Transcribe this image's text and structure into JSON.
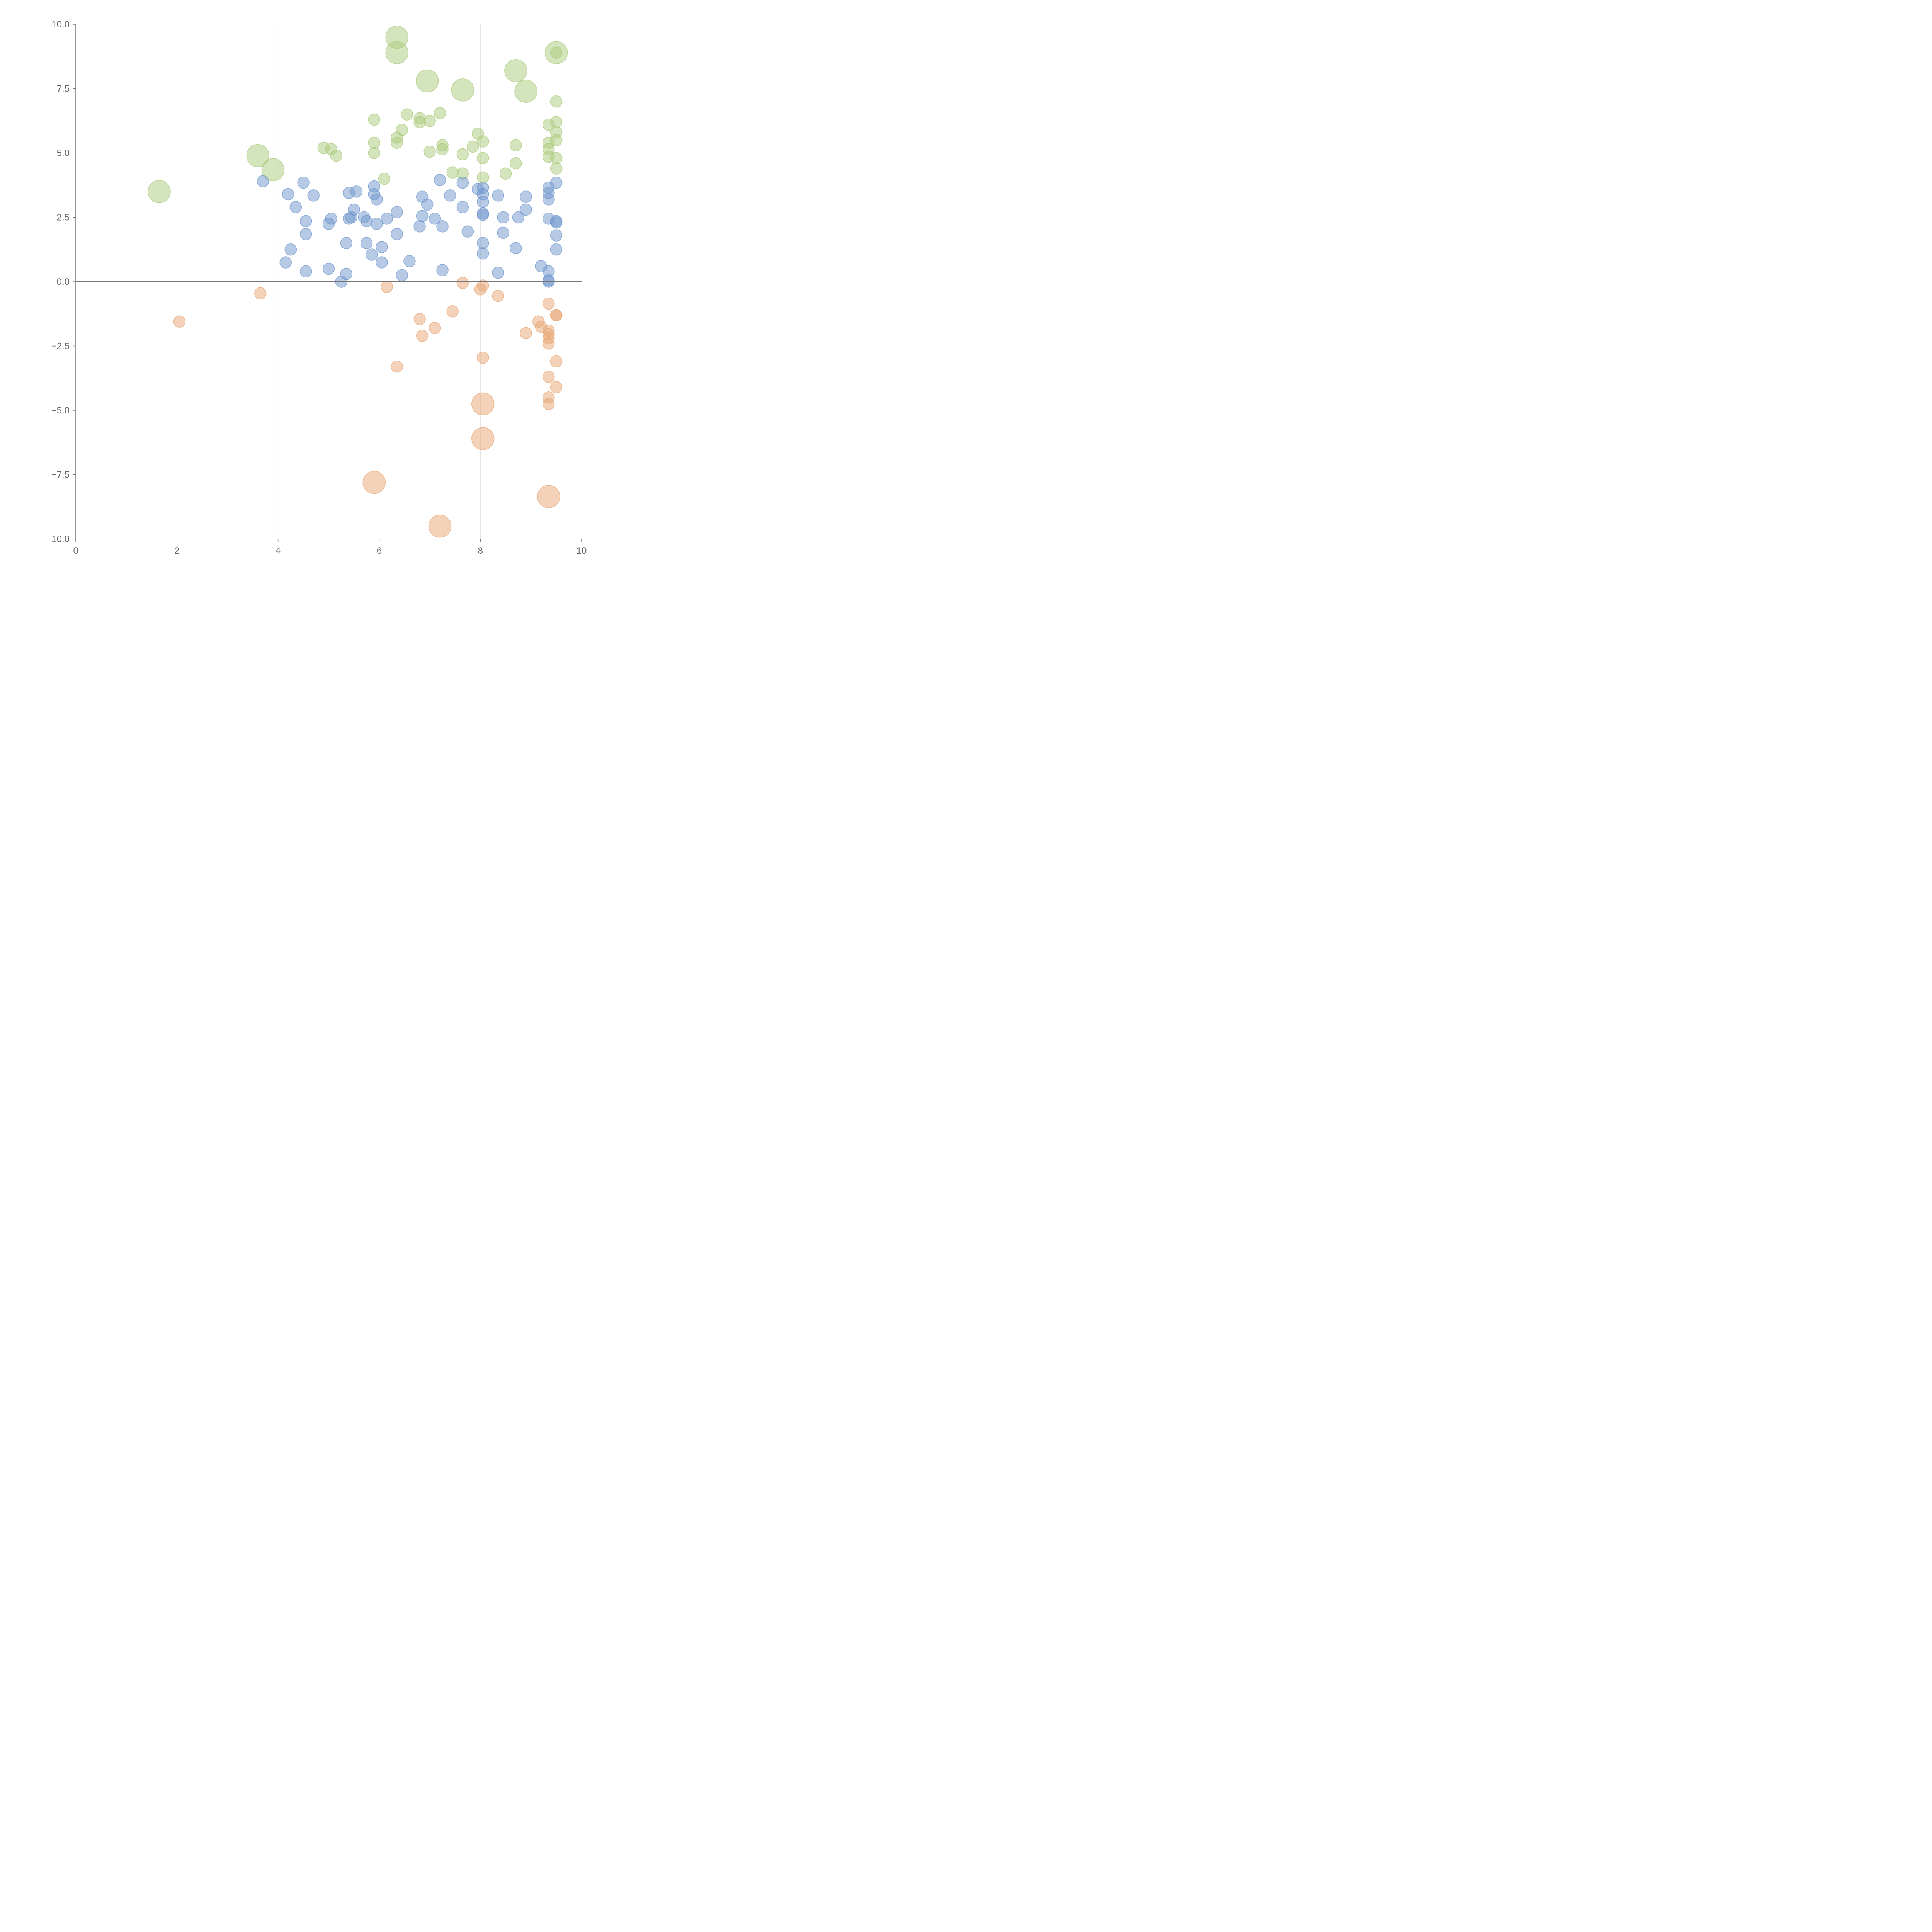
{
  "chart_data": {
    "type": "scatter",
    "title": "",
    "xlabel": "",
    "ylabel": "",
    "xlim": [
      0,
      10
    ],
    "ylim": [
      -10,
      10
    ],
    "grid": "vertical",
    "zero_line": true,
    "legend": "none",
    "x_ticks": [
      "0",
      "2",
      "4",
      "6",
      "8",
      "10"
    ],
    "y_ticks": [
      "10.0",
      "7.5",
      "5.0",
      "2.5",
      "0.0",
      "−2.5",
      "−5.0",
      "−7.5",
      "−10.0"
    ],
    "series": [
      {
        "color": "#a9c97a",
        "points": [
          [
            1.65,
            3.5,
            2
          ],
          [
            3.6,
            4.9,
            2
          ],
          [
            3.9,
            4.35,
            2
          ],
          [
            6.35,
            9.5,
            2
          ],
          [
            6.35,
            8.9,
            2
          ],
          [
            6.95,
            7.8,
            2
          ],
          [
            7.65,
            7.45,
            2
          ],
          [
            8.7,
            8.2,
            2
          ],
          [
            8.9,
            7.4,
            2
          ],
          [
            9.5,
            8.9,
            2
          ],
          [
            4.9,
            5.2,
            1
          ],
          [
            5.05,
            5.15,
            1
          ],
          [
            5.15,
            4.9,
            1
          ],
          [
            5.9,
            6.3,
            1
          ],
          [
            5.9,
            5.4,
            1
          ],
          [
            5.9,
            5.0,
            1
          ],
          [
            6.1,
            4.0,
            1
          ],
          [
            6.35,
            5.6,
            1
          ],
          [
            6.35,
            5.4,
            1
          ],
          [
            6.45,
            5.9,
            1
          ],
          [
            6.55,
            6.5,
            1
          ],
          [
            6.8,
            6.35,
            1
          ],
          [
            6.8,
            6.2,
            1
          ],
          [
            7.0,
            6.25,
            1
          ],
          [
            7.0,
            5.05,
            1
          ],
          [
            7.2,
            6.55,
            1
          ],
          [
            7.25,
            5.3,
            1
          ],
          [
            7.25,
            5.15,
            1
          ],
          [
            7.45,
            4.25,
            1
          ],
          [
            7.65,
            4.95,
            1
          ],
          [
            7.65,
            4.2,
            1
          ],
          [
            7.85,
            5.25,
            1
          ],
          [
            7.95,
            5.75,
            1
          ],
          [
            8.05,
            5.45,
            1
          ],
          [
            8.05,
            4.8,
            1
          ],
          [
            8.05,
            4.05,
            1
          ],
          [
            8.5,
            4.2,
            1
          ],
          [
            8.7,
            5.3,
            1
          ],
          [
            8.7,
            4.6,
            1
          ],
          [
            9.35,
            6.1,
            1
          ],
          [
            9.35,
            5.4,
            1
          ],
          [
            9.35,
            5.15,
            1
          ],
          [
            9.35,
            4.85,
            1
          ],
          [
            9.5,
            7.0,
            1
          ],
          [
            9.5,
            6.2,
            1
          ],
          [
            9.5,
            5.8,
            1
          ],
          [
            9.5,
            5.5,
            1
          ],
          [
            9.5,
            4.8,
            1
          ],
          [
            9.5,
            4.4,
            1
          ],
          [
            9.5,
            8.9,
            1
          ]
        ]
      },
      {
        "color": "#6f95cc",
        "points": [
          [
            3.7,
            3.9,
            1
          ],
          [
            4.2,
            3.4,
            1
          ],
          [
            4.25,
            1.25,
            1
          ],
          [
            4.15,
            0.75,
            1
          ],
          [
            4.35,
            2.9,
            1
          ],
          [
            4.5,
            3.85,
            1
          ],
          [
            4.55,
            2.35,
            1
          ],
          [
            4.55,
            1.85,
            1
          ],
          [
            4.55,
            0.4,
            1
          ],
          [
            4.7,
            3.35,
            1
          ],
          [
            5.0,
            2.25,
            1
          ],
          [
            5.05,
            2.45,
            1
          ],
          [
            5.0,
            0.5,
            1
          ],
          [
            5.25,
            0.0,
            1
          ],
          [
            5.35,
            1.5,
            1
          ],
          [
            5.35,
            0.3,
            1
          ],
          [
            5.4,
            3.45,
            1
          ],
          [
            5.4,
            2.45,
            1
          ],
          [
            5.45,
            2.5,
            1
          ],
          [
            5.5,
            2.8,
            1
          ],
          [
            5.55,
            3.5,
            1
          ],
          [
            5.7,
            2.5,
            1
          ],
          [
            5.75,
            2.35,
            1
          ],
          [
            5.75,
            1.5,
            1
          ],
          [
            5.85,
            1.05,
            1
          ],
          [
            5.9,
            3.7,
            1
          ],
          [
            5.9,
            3.4,
            1
          ],
          [
            5.95,
            3.2,
            1
          ],
          [
            5.95,
            2.25,
            1
          ],
          [
            6.05,
            1.35,
            1
          ],
          [
            6.05,
            0.75,
            1
          ],
          [
            6.15,
            2.45,
            1
          ],
          [
            6.35,
            2.7,
            1
          ],
          [
            6.35,
            1.85,
            1
          ],
          [
            6.45,
            0.25,
            1
          ],
          [
            6.6,
            0.8,
            1
          ],
          [
            6.8,
            2.15,
            1
          ],
          [
            6.85,
            3.3,
            1
          ],
          [
            6.85,
            2.55,
            1
          ],
          [
            6.95,
            3.0,
            1
          ],
          [
            7.1,
            2.45,
            1
          ],
          [
            7.2,
            3.95,
            1
          ],
          [
            7.25,
            2.15,
            1
          ],
          [
            7.25,
            0.45,
            1
          ],
          [
            7.4,
            3.35,
            1
          ],
          [
            7.65,
            3.85,
            1
          ],
          [
            7.65,
            2.9,
            1
          ],
          [
            7.75,
            1.95,
            1
          ],
          [
            7.95,
            3.6,
            1
          ],
          [
            8.05,
            3.65,
            1
          ],
          [
            8.05,
            3.4,
            1
          ],
          [
            8.05,
            3.1,
            1
          ],
          [
            8.05,
            2.65,
            1
          ],
          [
            8.05,
            2.6,
            1
          ],
          [
            8.05,
            1.5,
            1
          ],
          [
            8.05,
            1.1,
            1
          ],
          [
            8.35,
            3.35,
            1
          ],
          [
            8.35,
            0.35,
            1
          ],
          [
            8.45,
            2.5,
            1
          ],
          [
            8.45,
            1.9,
            1
          ],
          [
            8.7,
            1.3,
            1
          ],
          [
            8.75,
            2.5,
            1
          ],
          [
            8.9,
            3.3,
            1
          ],
          [
            8.9,
            2.8,
            1
          ],
          [
            9.2,
            0.6,
            1
          ],
          [
            9.35,
            3.65,
            1
          ],
          [
            9.35,
            3.45,
            1
          ],
          [
            9.35,
            3.2,
            1
          ],
          [
            9.35,
            2.45,
            1
          ],
          [
            9.35,
            0.4,
            1
          ],
          [
            9.35,
            0.05,
            1
          ],
          [
            9.35,
            0.0,
            1
          ],
          [
            9.5,
            3.85,
            1
          ],
          [
            9.5,
            2.35,
            1
          ],
          [
            9.5,
            2.3,
            1
          ],
          [
            9.5,
            1.8,
            1
          ],
          [
            9.5,
            1.25,
            1
          ]
        ]
      },
      {
        "color": "#e8a673",
        "points": [
          [
            2.05,
            -1.55,
            1
          ],
          [
            3.65,
            -0.45,
            1
          ],
          [
            6.15,
            -0.2,
            1
          ],
          [
            6.35,
            -3.3,
            1
          ],
          [
            6.8,
            -1.45,
            1
          ],
          [
            6.85,
            -2.1,
            1
          ],
          [
            7.1,
            -1.8,
            1
          ],
          [
            7.45,
            -1.15,
            1
          ],
          [
            7.65,
            -0.05,
            1
          ],
          [
            8.0,
            -0.3,
            1
          ],
          [
            8.05,
            -0.15,
            1
          ],
          [
            8.05,
            -2.95,
            1
          ],
          [
            8.35,
            -0.55,
            1
          ],
          [
            8.9,
            -2.0,
            1
          ],
          [
            9.15,
            -1.55,
            1
          ],
          [
            9.2,
            -1.75,
            1
          ],
          [
            9.35,
            -0.85,
            1
          ],
          [
            9.35,
            -1.9,
            1
          ],
          [
            9.35,
            -2.05,
            1
          ],
          [
            9.35,
            -2.2,
            1
          ],
          [
            9.35,
            -2.4,
            1
          ],
          [
            9.35,
            -3.7,
            1
          ],
          [
            9.35,
            -4.5,
            1
          ],
          [
            9.35,
            -4.75,
            1
          ],
          [
            9.5,
            -1.3,
            1
          ],
          [
            9.5,
            -1.3,
            1
          ],
          [
            9.5,
            -3.1,
            1
          ],
          [
            9.5,
            -4.1,
            1
          ],
          [
            5.9,
            -7.8,
            2
          ],
          [
            7.2,
            -9.5,
            2
          ],
          [
            8.05,
            -4.75,
            2
          ],
          [
            8.05,
            -6.1,
            2
          ],
          [
            9.35,
            -8.35,
            2
          ]
        ]
      }
    ]
  }
}
